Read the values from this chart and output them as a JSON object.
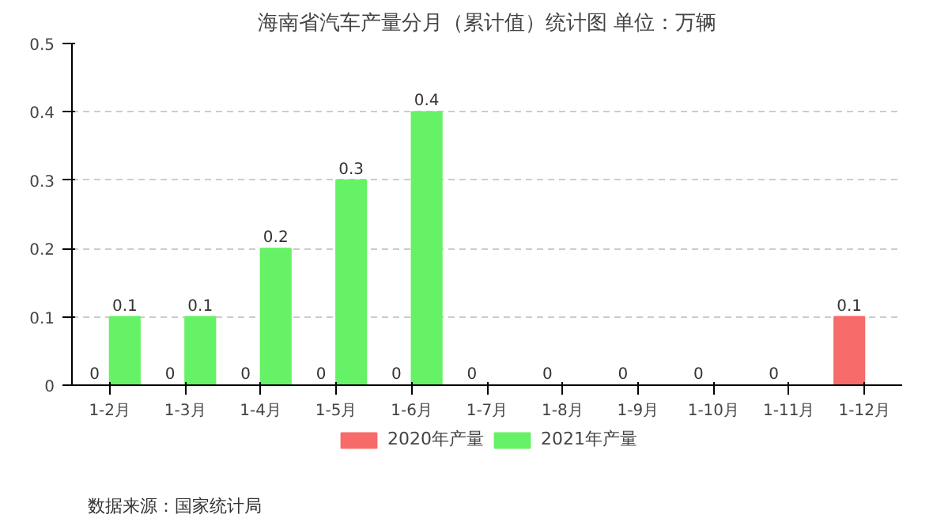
{
  "chart_data": {
    "type": "bar",
    "title": "海南省汽车产量分月（累计值）统计图 单位：万辆",
    "categories": [
      "1-2月",
      "1-3月",
      "1-4月",
      "1-5月",
      "1-6月",
      "1-7月",
      "1-8月",
      "1-9月",
      "1-10月",
      "1-11月",
      "1-12月"
    ],
    "series": [
      {
        "name": "2020年产量",
        "color": "#f86b6b",
        "values": [
          0,
          0,
          0,
          0,
          0,
          0,
          0,
          0,
          0,
          0,
          0.1
        ]
      },
      {
        "name": "2021年产量",
        "color": "#66f266",
        "values": [
          0.1,
          0.1,
          0.2,
          0.3,
          0.4,
          null,
          null,
          null,
          null,
          null,
          null
        ]
      }
    ],
    "ylim": [
      0,
      0.5
    ],
    "yticks": [
      0,
      0.1,
      0.2,
      0.3,
      0.4,
      0.5
    ],
    "grid": "y",
    "legend": "bottom",
    "data_labels": true,
    "annotations": [
      "数据来源：国家统计局"
    ]
  }
}
